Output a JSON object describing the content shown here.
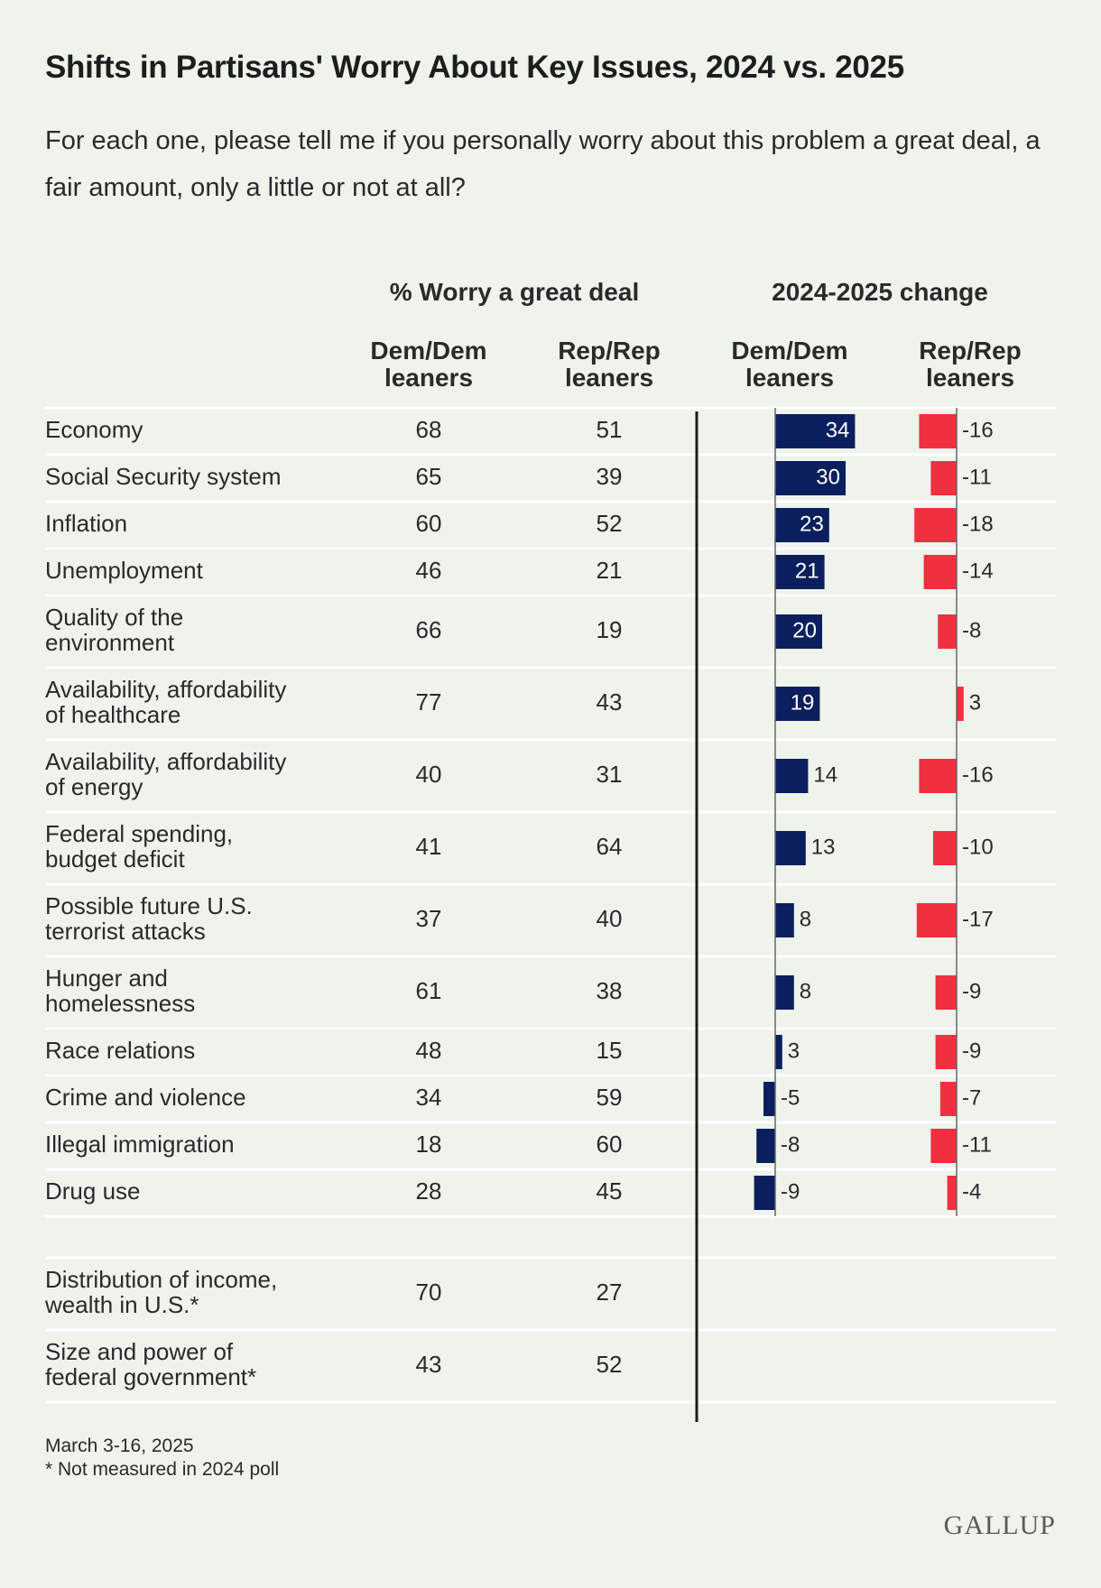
{
  "title": "Shifts in Partisans' Worry About Key Issues, 2024 vs. 2025",
  "subtitle": "For each one, please tell me if you personally worry about this problem a great deal, a fair amount, only a little or not at all?",
  "headers": {
    "level_group": "% Worry a great deal",
    "change_group": "2024-2025 change",
    "dem_line1": "Dem/Dem",
    "dem_line2": "leaners",
    "rep_line1": "Rep/Rep",
    "rep_line2": "leaners"
  },
  "footer": {
    "date": "March 3-16, 2025",
    "note": "* Not measured in 2024 poll"
  },
  "logo": "GALLUP",
  "colors": {
    "dem": "#0b1f5e",
    "rep": "#f0303f",
    "background": "#eef3ec",
    "divider": "#ffffff"
  },
  "chart_data": {
    "type": "table",
    "columns": [
      "Dem/Dem leaners",
      "Rep/Rep leaners",
      "Dem/Dem leaners change",
      "Rep/Rep leaners change"
    ],
    "rows": [
      {
        "issue": [
          "Economy"
        ],
        "dem": 68,
        "rep": 51,
        "dem_change": 34,
        "rep_change": -16
      },
      {
        "issue": [
          "Social Security system"
        ],
        "dem": 65,
        "rep": 39,
        "dem_change": 30,
        "rep_change": -11
      },
      {
        "issue": [
          "Inflation"
        ],
        "dem": 60,
        "rep": 52,
        "dem_change": 23,
        "rep_change": -18
      },
      {
        "issue": [
          "Unemployment"
        ],
        "dem": 46,
        "rep": 21,
        "dem_change": 21,
        "rep_change": -14
      },
      {
        "issue": [
          "Quality of the",
          "environment"
        ],
        "dem": 66,
        "rep": 19,
        "dem_change": 20,
        "rep_change": -8
      },
      {
        "issue": [
          "Availability, affordability",
          "of healthcare"
        ],
        "dem": 77,
        "rep": 43,
        "dem_change": 19,
        "rep_change": 3
      },
      {
        "issue": [
          "Availability, affordability",
          "of energy"
        ],
        "dem": 40,
        "rep": 31,
        "dem_change": 14,
        "rep_change": -16
      },
      {
        "issue": [
          "Federal spending,",
          "budget deficit"
        ],
        "dem": 41,
        "rep": 64,
        "dem_change": 13,
        "rep_change": -10
      },
      {
        "issue": [
          "Possible future U.S.",
          "terrorist attacks"
        ],
        "dem": 37,
        "rep": 40,
        "dem_change": 8,
        "rep_change": -17
      },
      {
        "issue": [
          "Hunger and",
          "homelessness"
        ],
        "dem": 61,
        "rep": 38,
        "dem_change": 8,
        "rep_change": -9
      },
      {
        "issue": [
          "Race relations"
        ],
        "dem": 48,
        "rep": 15,
        "dem_change": 3,
        "rep_change": -9
      },
      {
        "issue": [
          "Crime and violence"
        ],
        "dem": 34,
        "rep": 59,
        "dem_change": -5,
        "rep_change": -7
      },
      {
        "issue": [
          "Illegal immigration"
        ],
        "dem": 18,
        "rep": 60,
        "dem_change": -8,
        "rep_change": -11
      },
      {
        "issue": [
          "Drug use"
        ],
        "dem": 28,
        "rep": 45,
        "dem_change": -9,
        "rep_change": -4
      }
    ],
    "not_measured_rows": [
      {
        "issue": [
          "Distribution of income,",
          "wealth in U.S.*"
        ],
        "dem": 70,
        "rep": 27
      },
      {
        "issue": [
          "Size and power of",
          "federal government*"
        ],
        "dem": 43,
        "rep": 52
      }
    ]
  }
}
